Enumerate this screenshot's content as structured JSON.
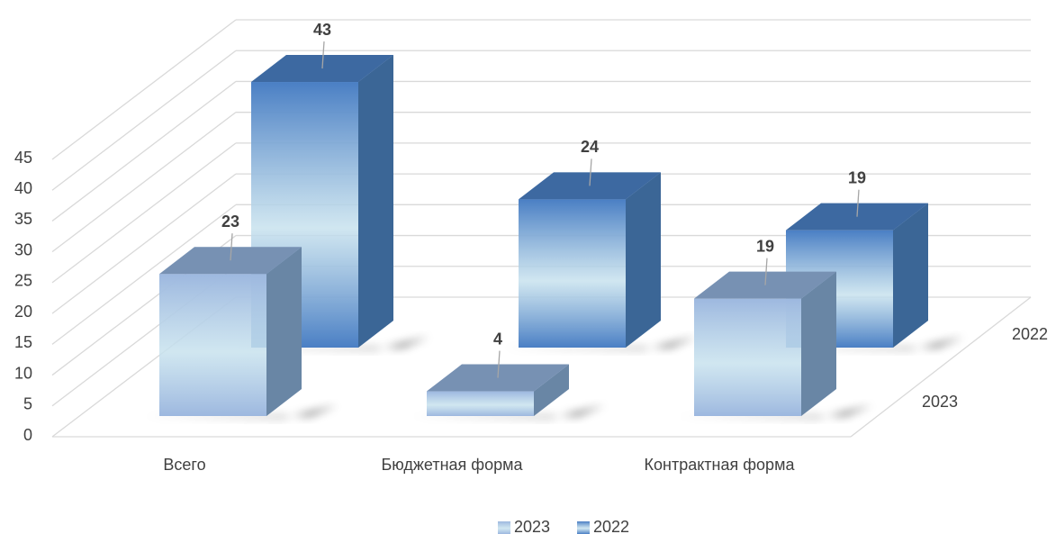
{
  "chart_data": {
    "type": "bar3d",
    "categories": [
      "Всего",
      "Бюджетная форма",
      "Контрактная форма"
    ],
    "series": [
      {
        "name": "2023",
        "color": "#9db8df",
        "values": [
          23,
          4,
          19
        ]
      },
      {
        "name": "2022",
        "color": "#4a7fc4",
        "values": [
          43,
          24,
          19
        ]
      }
    ],
    "ylim": [
      0,
      45
    ],
    "yticks": [
      0,
      5,
      10,
      15,
      20,
      25,
      30,
      35,
      40,
      45
    ],
    "grid": true,
    "legend": "bottom"
  }
}
